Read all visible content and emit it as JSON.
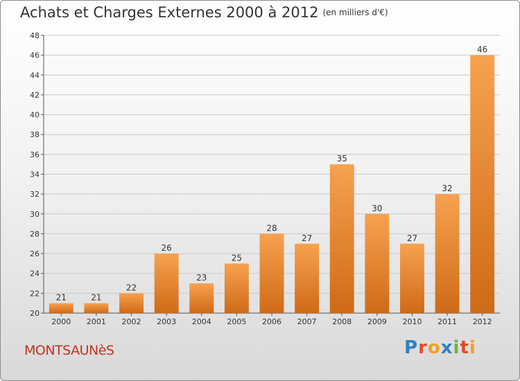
{
  "title": "Achats et Charges Externes 2000 à 2012",
  "subtitle": "(en milliers d'€)",
  "location": "MONTSAUNèS",
  "logo": {
    "text": "Proxiti",
    "letters": [
      {
        "ch": "P",
        "color": "#2f7fc6"
      },
      {
        "ch": "r",
        "color": "#e34b2a"
      },
      {
        "ch": "o",
        "color": "#f0a21c"
      },
      {
        "ch": "x",
        "color": "#2f7fc6"
      },
      {
        "ch": "i",
        "color": "#6db33f"
      },
      {
        "ch": "t",
        "color": "#e34b2a"
      },
      {
        "ch": "i",
        "color": "#f0a21c"
      }
    ]
  },
  "colors": {
    "bar_top": "#f7a24f",
    "bar_bottom": "#cf6a17",
    "location_text": "#c0341f",
    "grid": "#c8c8c8"
  },
  "chart_data": {
    "type": "bar",
    "categories": [
      "2000",
      "2001",
      "2002",
      "2003",
      "2004",
      "2005",
      "2006",
      "2007",
      "2008",
      "2009",
      "2010",
      "2011",
      "2012"
    ],
    "values": [
      21,
      21,
      22,
      26,
      23,
      25,
      28,
      27,
      35,
      30,
      27,
      32,
      46
    ],
    "title": "Achats et Charges Externes 2000 à 2012",
    "xlabel": "",
    "ylabel": "",
    "ylim": [
      20,
      48
    ],
    "yticks": [
      20,
      22,
      24,
      26,
      28,
      30,
      32,
      34,
      36,
      38,
      40,
      42,
      44,
      46,
      48
    ],
    "grid": true,
    "data_labels": true
  }
}
